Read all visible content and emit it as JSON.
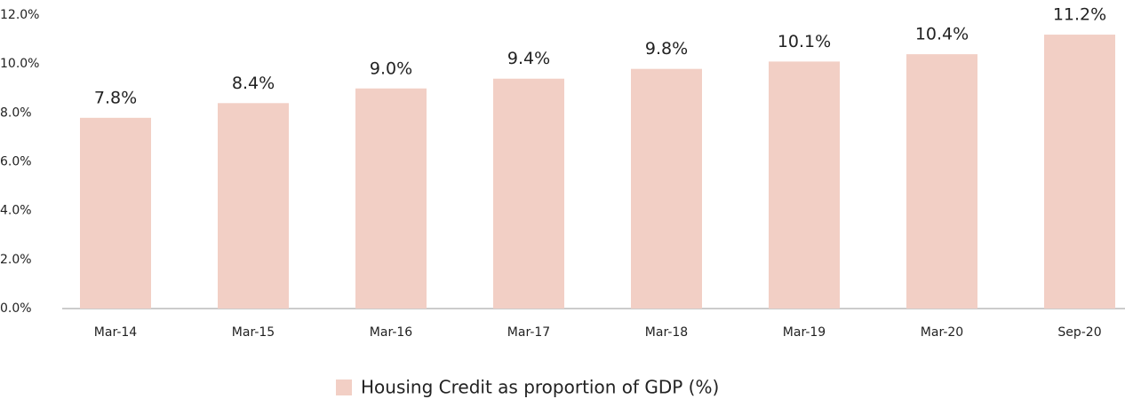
{
  "chart_data": {
    "type": "bar",
    "categories": [
      "Mar-14",
      "Mar-15",
      "Mar-16",
      "Mar-17",
      "Mar-18",
      "Mar-19",
      "Mar-20",
      "Sep-20"
    ],
    "series": [
      {
        "name": "Housing Credit as proportion of GDP (%)",
        "color": "#f2cfc5",
        "values": [
          7.8,
          8.4,
          9.0,
          9.4,
          9.8,
          10.1,
          10.4,
          11.2
        ],
        "value_labels": [
          "7.8%",
          "8.4%",
          "9.0%",
          "9.4%",
          "9.8%",
          "10.1%",
          "10.4%",
          "11.2%"
        ]
      }
    ],
    "ylim": [
      0,
      12
    ],
    "yticks": [
      {
        "value": 0,
        "label": "0.0%"
      },
      {
        "value": 2,
        "label": "2.0%"
      },
      {
        "value": 4,
        "label": "4.0%"
      },
      {
        "value": 6,
        "label": "6.0%"
      },
      {
        "value": 8,
        "label": "8.0%"
      },
      {
        "value": 10,
        "label": "10.0%"
      },
      {
        "value": 12,
        "label": "12.0%"
      }
    ],
    "grid": false,
    "legend": "bottom"
  }
}
